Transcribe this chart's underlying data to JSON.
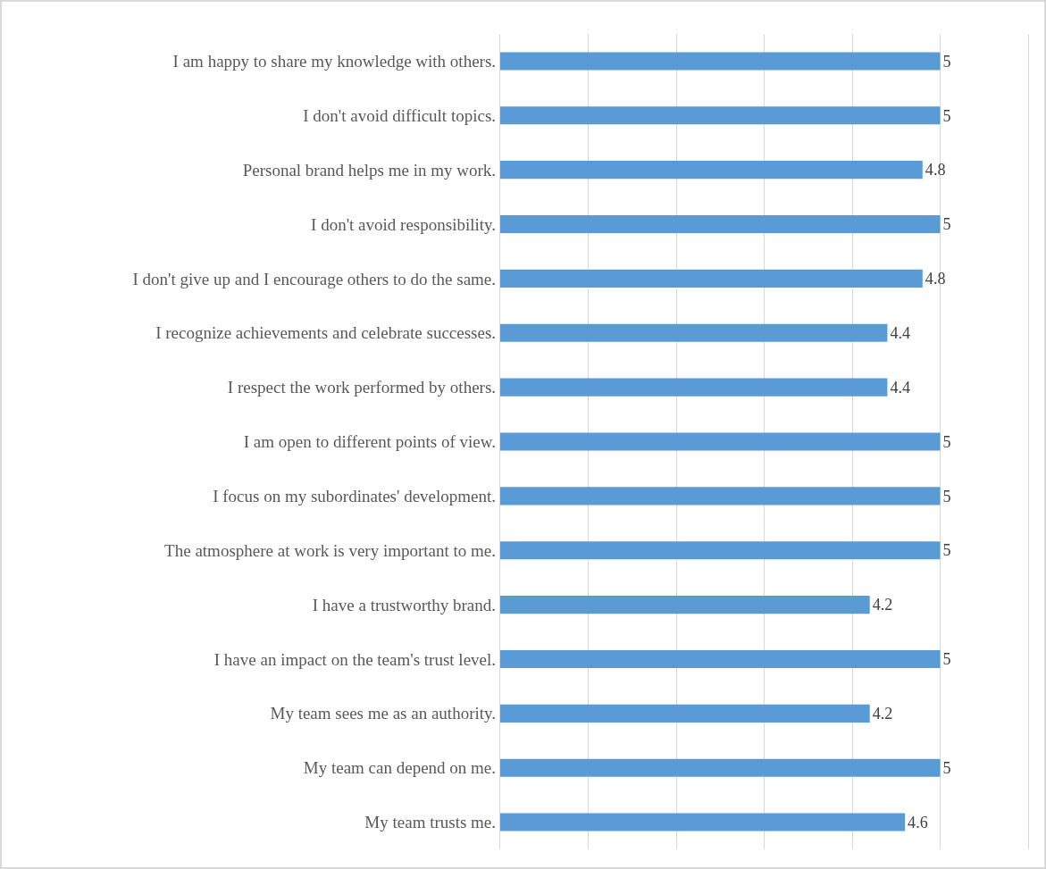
{
  "chart_data": {
    "type": "bar",
    "orientation": "horizontal",
    "categories": [
      "I am happy to share my knowledge with others.",
      "I don't avoid difficult topics.",
      "Personal brand helps me in my work.",
      "I don't avoid responsibility.",
      "I don't give up and I encourage others to do the same.",
      "I recognize achievements and celebrate successes.",
      "I respect the work performed by others.",
      "I am open to different points of view.",
      "I focus on my subordinates' development.",
      "The atmosphere at work is very important to me.",
      "I have a trustworthy brand.",
      "I have an impact on the team's trust level.",
      "My team sees me as an authority.",
      "My team can depend on me.",
      "My team trusts me."
    ],
    "values": [
      5,
      5,
      4.8,
      5,
      4.8,
      4.4,
      4.4,
      5,
      5,
      5,
      4.2,
      5,
      4.2,
      5,
      4.6
    ],
    "data_labels": true,
    "color": "#5b9bd5",
    "xlim": [
      0,
      6
    ],
    "xticks": [
      {
        "value": 1,
        "label": null
      },
      {
        "value": 2,
        "label": null
      },
      {
        "value": 3,
        "label": null
      },
      {
        "value": 4,
        "label": null
      },
      {
        "value": 5,
        "label": null
      }
    ],
    "grid": "x",
    "tick_labels": "y"
  }
}
